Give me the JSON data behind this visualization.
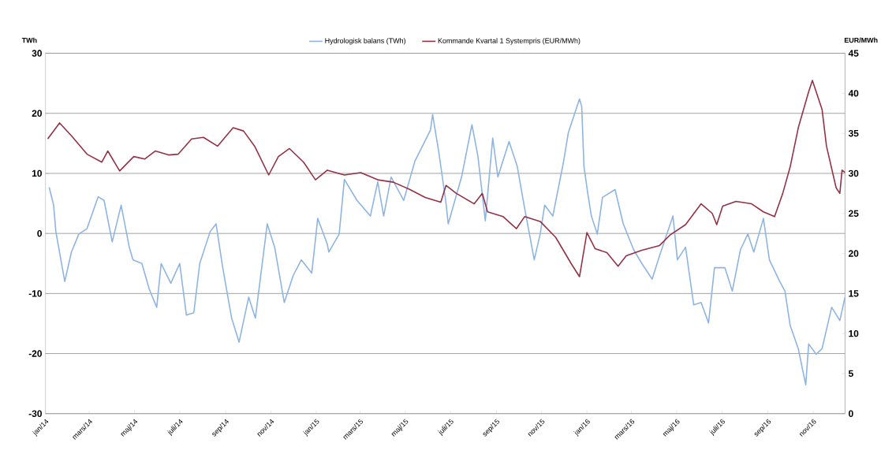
{
  "chart_data": {
    "type": "line",
    "ylabel": "TWh",
    "y2label": "EUR/MWh",
    "legend": "top",
    "grid": "y",
    "line_style": "solid",
    "xlim": [
      "2014-01-01",
      "2016-12-14"
    ],
    "ylim": [
      -30,
      30
    ],
    "yticks": [
      -30,
      -20,
      -10,
      0,
      10,
      20,
      30
    ],
    "y2lim": [
      0,
      45
    ],
    "y2ticks": [
      0,
      5,
      10,
      15,
      20,
      25,
      30,
      35,
      40,
      45
    ],
    "xticks": [
      {
        "value": "2014-01-01",
        "label": "jan/14"
      },
      {
        "value": "2014-03-01",
        "label": "mars/14"
      },
      {
        "value": "2014-05-01",
        "label": "maj/14"
      },
      {
        "value": "2014-07-01",
        "label": "juli/14"
      },
      {
        "value": "2014-09-01",
        "label": "sep/14"
      },
      {
        "value": "2014-11-01",
        "label": "nov/14"
      },
      {
        "value": "2015-01-01",
        "label": "jan/15"
      },
      {
        "value": "2015-03-01",
        "label": "mars/15"
      },
      {
        "value": "2015-05-01",
        "label": "maj/15"
      },
      {
        "value": "2015-07-01",
        "label": "juli/15"
      },
      {
        "value": "2015-09-01",
        "label": "sep/15"
      },
      {
        "value": "2015-11-01",
        "label": "nov/15"
      },
      {
        "value": "2016-01-01",
        "label": "jan/16"
      },
      {
        "value": "2016-03-01",
        "label": "mars/16"
      },
      {
        "value": "2016-05-01",
        "label": "maj/16"
      },
      {
        "value": "2016-07-01",
        "label": "juli/16"
      },
      {
        "value": "2016-09-01",
        "label": "sep/16"
      },
      {
        "value": "2016-11-01",
        "label": "nov/16"
      }
    ],
    "series": [
      {
        "name": "Hydrologisk balans (TWh)",
        "color": "#8db4e2",
        "x": [
          "2014-01-06",
          "2014-01-12",
          "2014-01-15",
          "2014-01-27",
          "2014-02-05",
          "2014-02-15",
          "2014-02-26",
          "2014-03-13",
          "2014-03-21",
          "2014-04-01",
          "2014-04-13",
          "2014-04-24",
          "2014-04-29",
          "2014-05-11",
          "2014-05-21",
          "2014-05-31",
          "2014-06-06",
          "2014-06-19",
          "2014-07-01",
          "2014-07-10",
          "2014-07-20",
          "2014-07-28",
          "2014-08-11",
          "2014-08-19",
          "2014-08-28",
          "2014-09-09",
          "2014-09-19",
          "2014-10-02",
          "2014-10-11",
          "2014-10-27",
          "2014-11-06",
          "2014-11-19",
          "2014-12-01",
          "2014-12-12",
          "2014-12-26",
          "2014-12-31",
          "2015-01-03",
          "2015-01-07",
          "2015-01-16",
          "2015-01-18",
          "2015-02-01",
          "2015-02-08",
          "2015-02-25",
          "2015-03-15",
          "2015-03-25",
          "2015-04-02",
          "2015-04-12",
          "2015-04-29",
          "2015-05-14",
          "2015-06-04",
          "2015-06-07",
          "2015-06-15",
          "2015-06-25",
          "2015-06-28",
          "2015-07-16",
          "2015-07-30",
          "2015-08-07",
          "2015-08-17",
          "2015-08-27",
          "2015-09-03",
          "2015-09-18",
          "2015-09-29",
          "2015-10-09",
          "2015-10-22",
          "2015-10-30",
          "2015-11-05",
          "2015-11-16",
          "2015-11-30",
          "2015-12-07",
          "2015-12-22",
          "2015-12-25",
          "2015-12-28",
          "2016-01-02",
          "2016-01-07",
          "2016-01-15",
          "2016-01-22",
          "2016-02-08",
          "2016-02-19",
          "2016-03-04",
          "2016-03-15",
          "2016-03-29",
          "2016-04-08",
          "2016-04-26",
          "2016-05-02",
          "2016-05-13",
          "2016-05-24",
          "2016-06-03",
          "2016-06-13",
          "2016-06-21",
          "2016-07-05",
          "2016-07-15",
          "2016-07-26",
          "2016-08-05",
          "2016-08-13",
          "2016-08-26",
          "2016-09-03",
          "2016-09-17",
          "2016-09-24",
          "2016-10-01",
          "2016-10-12",
          "2016-10-22",
          "2016-10-26",
          "2016-11-05",
          "2016-11-13",
          "2016-11-26",
          "2016-12-07",
          "2016-12-14"
        ],
        "values": [
          7.7,
          4.7,
          0.3,
          -8,
          -3.1,
          -0.1,
          0.8,
          6.1,
          5.5,
          -1.4,
          4.7,
          -2.3,
          -4.4,
          -5,
          -9.3,
          -12.3,
          -5,
          -8.3,
          -5,
          -13.6,
          -13.2,
          -5,
          0.3,
          1.6,
          -5.7,
          -14.1,
          -18.1,
          -10.6,
          -14.1,
          1.6,
          -2.3,
          -11.5,
          -7,
          -4.4,
          -6.6,
          -1,
          2.5,
          1.2,
          -1.8,
          -3.1,
          -0.1,
          9,
          5.5,
          2.9,
          8.6,
          2.9,
          9.4,
          5.5,
          12,
          17.2,
          19.8,
          13.8,
          5.1,
          1.6,
          9.4,
          18.1,
          12.9,
          2.1,
          15.9,
          9.4,
          15.3,
          11.2,
          4.2,
          -4.4,
          -0.1,
          4.7,
          2.9,
          11.6,
          16.8,
          22.4,
          21.1,
          11.2,
          6.8,
          2.9,
          -0.1,
          6,
          7.3,
          1.6,
          -2.7,
          -5,
          -7.6,
          -3.7,
          2.9,
          -4.4,
          -2.3,
          -11.9,
          -11.5,
          -14.9,
          -5.7,
          -5.7,
          -9.6,
          -2.7,
          -0.1,
          -3.1,
          2.5,
          -4.4,
          -8,
          -9.6,
          -15.3,
          -19.2,
          -25.2,
          -18.4,
          -20.1,
          -19.2,
          -12.3,
          -14.5,
          -10.6
        ]
      },
      {
        "name": "Kommande Kvartal 1 Systempris (EUR/MWh)",
        "color": "#953145",
        "axis": "y2",
        "x": [
          "2014-01-04",
          "2014-01-20",
          "2014-02-05",
          "2014-02-26",
          "2014-03-18",
          "2014-03-26",
          "2014-04-11",
          "2014-04-30",
          "2014-05-15",
          "2014-05-29",
          "2014-06-16",
          "2014-06-29",
          "2014-07-17",
          "2014-08-02",
          "2014-08-21",
          "2014-09-11",
          "2014-09-25",
          "2014-10-10",
          "2014-10-29",
          "2014-11-11",
          "2014-11-26",
          "2014-12-15",
          "2014-12-31",
          "2015-01-16",
          "2015-02-08",
          "2015-03-02",
          "2015-03-25",
          "2015-04-15",
          "2015-05-07",
          "2015-05-28",
          "2015-06-18",
          "2015-06-25",
          "2015-07-09",
          "2015-08-02",
          "2015-08-13",
          "2015-08-20",
          "2015-09-10",
          "2015-09-28",
          "2015-10-09",
          "2015-10-30",
          "2015-11-20",
          "2015-12-11",
          "2015-12-22",
          "2016-01-01",
          "2016-01-12",
          "2016-01-28",
          "2016-02-12",
          "2016-02-23",
          "2016-03-15",
          "2016-04-08",
          "2016-04-22",
          "2016-05-13",
          "2016-06-03",
          "2016-06-18",
          "2016-06-24",
          "2016-07-02",
          "2016-07-20",
          "2016-08-10",
          "2016-08-26",
          "2016-09-10",
          "2016-09-21",
          "2016-10-01",
          "2016-10-12",
          "2016-10-26",
          "2016-10-31",
          "2016-11-13",
          "2016-11-19",
          "2016-12-02",
          "2016-12-07",
          "2016-12-10",
          "2016-12-14"
        ],
        "values": [
          34.3,
          36.3,
          34.7,
          32.4,
          31.4,
          32.8,
          30.3,
          32.1,
          31.8,
          32.8,
          32.3,
          32.4,
          34.3,
          34.5,
          33.4,
          35.7,
          35.3,
          33.4,
          29.8,
          32.1,
          33.1,
          31.4,
          29.2,
          30.4,
          29.8,
          30.1,
          29.2,
          28.9,
          28,
          27,
          26.4,
          28.5,
          27.5,
          26.2,
          27.5,
          25.2,
          24.6,
          23.1,
          24.6,
          24,
          22,
          18.7,
          17.1,
          22.6,
          20.6,
          20.1,
          18.4,
          19.7,
          20.4,
          21,
          22.3,
          23.6,
          26.2,
          25,
          23.6,
          25.9,
          26.5,
          26.2,
          25.2,
          24.6,
          27.5,
          30.8,
          35.7,
          40.2,
          41.6,
          38,
          33.4,
          28.2,
          27.5,
          30.4,
          30.1
        ]
      }
    ]
  }
}
